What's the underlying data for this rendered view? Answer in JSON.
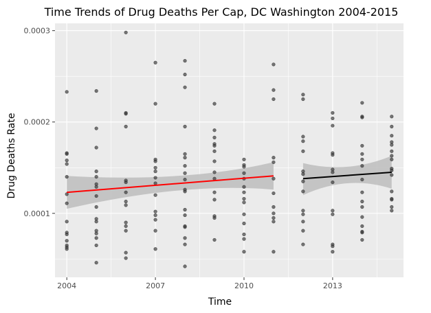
{
  "chart_data": {
    "type": "scatter",
    "title": "Time Trends of Drug Deaths Per Cap, DC Washington 2004-2015",
    "xlabel": "Time",
    "ylabel": "Drug Deaths Rate",
    "xlim": [
      2003.6,
      2015.4
    ],
    "ylim": [
      3e-05,
      0.000308
    ],
    "x_ticks": [
      2004,
      2007,
      2010,
      2013
    ],
    "x_tick_labels": [
      "2004",
      "2007",
      "2010",
      "2013"
    ],
    "y_ticks": [
      0.0001,
      0.0002,
      0.0003
    ],
    "y_tick_labels": [
      "0.0001",
      "0.0002",
      "0.0003"
    ],
    "grid": true,
    "legend": "none",
    "colors": {
      "panel": "#ebebeb",
      "grid_major": "#ffffff",
      "points": "#333333",
      "band": "#bdbdbd",
      "fit_before": "#ff0000",
      "fit_after": "#000000"
    },
    "points": [
      {
        "x": 2004,
        "y": 0.000233
      },
      {
        "x": 2004,
        "y": 0.000166
      },
      {
        "x": 2004,
        "y": 0.000165
      },
      {
        "x": 2004,
        "y": 0.000158
      },
      {
        "x": 2004,
        "y": 0.000154
      },
      {
        "x": 2004,
        "y": 0.00014
      },
      {
        "x": 2004,
        "y": 0.000121
      },
      {
        "x": 2004,
        "y": 0.000111
      },
      {
        "x": 2004,
        "y": 9.1e-05
      },
      {
        "x": 2004,
        "y": 7.9e-05
      },
      {
        "x": 2004,
        "y": 7.7e-05
      },
      {
        "x": 2004,
        "y": 7e-05
      },
      {
        "x": 2004,
        "y": 6.5e-05
      },
      {
        "x": 2004,
        "y": 6.3e-05
      },
      {
        "x": 2004,
        "y": 6.1e-05
      },
      {
        "x": 2005,
        "y": 0.000234
      },
      {
        "x": 2005,
        "y": 0.000193
      },
      {
        "x": 2005,
        "y": 0.000172
      },
      {
        "x": 2005,
        "y": 0.000146
      },
      {
        "x": 2005,
        "y": 0.00014
      },
      {
        "x": 2005,
        "y": 0.000132
      },
      {
        "x": 2005,
        "y": 0.000129
      },
      {
        "x": 2005,
        "y": 0.000119
      },
      {
        "x": 2005,
        "y": 0.000107
      },
      {
        "x": 2005,
        "y": 9.4e-05
      },
      {
        "x": 2005,
        "y": 9.1e-05
      },
      {
        "x": 2005,
        "y": 8.1e-05
      },
      {
        "x": 2005,
        "y": 7.8e-05
      },
      {
        "x": 2005,
        "y": 7.3e-05
      },
      {
        "x": 2005,
        "y": 6.5e-05
      },
      {
        "x": 2005,
        "y": 4.6e-05
      },
      {
        "x": 2006,
        "y": 0.000298
      },
      {
        "x": 2006,
        "y": 0.00021
      },
      {
        "x": 2006,
        "y": 0.000209
      },
      {
        "x": 2006,
        "y": 0.000195
      },
      {
        "x": 2006,
        "y": 0.000136
      },
      {
        "x": 2006,
        "y": 0.000134
      },
      {
        "x": 2006,
        "y": 0.000123
      },
      {
        "x": 2006,
        "y": 0.000113
      },
      {
        "x": 2006,
        "y": 0.000109
      },
      {
        "x": 2006,
        "y": 9e-05
      },
      {
        "x": 2006,
        "y": 8.6e-05
      },
      {
        "x": 2006,
        "y": 8.1e-05
      },
      {
        "x": 2006,
        "y": 5.7e-05
      },
      {
        "x": 2006,
        "y": 5.1e-05
      },
      {
        "x": 2007,
        "y": 0.000265
      },
      {
        "x": 2007,
        "y": 0.00022
      },
      {
        "x": 2007,
        "y": 0.000159
      },
      {
        "x": 2007,
        "y": 0.000157
      },
      {
        "x": 2007,
        "y": 0.00015
      },
      {
        "x": 2007,
        "y": 0.000146
      },
      {
        "x": 2007,
        "y": 0.000139
      },
      {
        "x": 2007,
        "y": 0.000133
      },
      {
        "x": 2007,
        "y": 0.00012
      },
      {
        "x": 2007,
        "y": 0.000102
      },
      {
        "x": 2007,
        "y": 9.8e-05
      },
      {
        "x": 2007,
        "y": 9.3e-05
      },
      {
        "x": 2007,
        "y": 8.1e-05
      },
      {
        "x": 2007,
        "y": 6.1e-05
      },
      {
        "x": 2008,
        "y": 0.000267
      },
      {
        "x": 2008,
        "y": 0.000252
      },
      {
        "x": 2008,
        "y": 0.000238
      },
      {
        "x": 2008,
        "y": 0.000195
      },
      {
        "x": 2008,
        "y": 0.000165
      },
      {
        "x": 2008,
        "y": 0.000161
      },
      {
        "x": 2008,
        "y": 0.000152
      },
      {
        "x": 2008,
        "y": 0.000144
      },
      {
        "x": 2008,
        "y": 0.000137
      },
      {
        "x": 2008,
        "y": 0.000126
      },
      {
        "x": 2008,
        "y": 0.000124
      },
      {
        "x": 2008,
        "y": 0.000104
      },
      {
        "x": 2008,
        "y": 9.8e-05
      },
      {
        "x": 2008,
        "y": 8.6e-05
      },
      {
        "x": 2008,
        "y": 8.5e-05
      },
      {
        "x": 2008,
        "y": 7.3e-05
      },
      {
        "x": 2008,
        "y": 6.6e-05
      },
      {
        "x": 2008,
        "y": 4.2e-05
      },
      {
        "x": 2009,
        "y": 0.00022
      },
      {
        "x": 2009,
        "y": 0.000191
      },
      {
        "x": 2009,
        "y": 0.000183
      },
      {
        "x": 2009,
        "y": 0.000176
      },
      {
        "x": 2009,
        "y": 0.000174
      },
      {
        "x": 2009,
        "y": 0.000168
      },
      {
        "x": 2009,
        "y": 0.000157
      },
      {
        "x": 2009,
        "y": 0.000145
      },
      {
        "x": 2009,
        "y": 0.000138
      },
      {
        "x": 2009,
        "y": 0.000123
      },
      {
        "x": 2009,
        "y": 0.000115
      },
      {
        "x": 2009,
        "y": 9.7e-05
      },
      {
        "x": 2009,
        "y": 9.5e-05
      },
      {
        "x": 2009,
        "y": 7.1e-05
      },
      {
        "x": 2010,
        "y": 0.000159
      },
      {
        "x": 2010,
        "y": 0.000153
      },
      {
        "x": 2010,
        "y": 0.000151
      },
      {
        "x": 2010,
        "y": 0.000144
      },
      {
        "x": 2010,
        "y": 0.000138
      },
      {
        "x": 2010,
        "y": 0.000129
      },
      {
        "x": 2010,
        "y": 0.000123
      },
      {
        "x": 2010,
        "y": 0.000116
      },
      {
        "x": 2010,
        "y": 0.000112
      },
      {
        "x": 2010,
        "y": 9.9e-05
      },
      {
        "x": 2010,
        "y": 8.9e-05
      },
      {
        "x": 2010,
        "y": 7.7e-05
      },
      {
        "x": 2010,
        "y": 7.2e-05
      },
      {
        "x": 2010,
        "y": 5.8e-05
      },
      {
        "x": 2011,
        "y": 0.000263
      },
      {
        "x": 2011,
        "y": 0.000235
      },
      {
        "x": 2011,
        "y": 0.000225
      },
      {
        "x": 2011,
        "y": 0.000161
      },
      {
        "x": 2011,
        "y": 0.000156
      },
      {
        "x": 2011,
        "y": 0.000138
      },
      {
        "x": 2011,
        "y": 0.000122
      },
      {
        "x": 2011,
        "y": 0.000107
      },
      {
        "x": 2011,
        "y": 0.0001
      },
      {
        "x": 2011,
        "y": 9.5e-05
      },
      {
        "x": 2011,
        "y": 9.1e-05
      },
      {
        "x": 2011,
        "y": 5.8e-05
      },
      {
        "x": 2012,
        "y": 0.00023
      },
      {
        "x": 2012,
        "y": 0.000225
      },
      {
        "x": 2012,
        "y": 0.000184
      },
      {
        "x": 2012,
        "y": 0.000179
      },
      {
        "x": 2012,
        "y": 0.000168
      },
      {
        "x": 2012,
        "y": 0.000146
      },
      {
        "x": 2012,
        "y": 0.000143
      },
      {
        "x": 2012,
        "y": 0.000135
      },
      {
        "x": 2012,
        "y": 0.000124
      },
      {
        "x": 2012,
        "y": 0.000103
      },
      {
        "x": 2012,
        "y": 9.9e-05
      },
      {
        "x": 2012,
        "y": 9.1e-05
      },
      {
        "x": 2012,
        "y": 8.1e-05
      },
      {
        "x": 2012,
        "y": 6.6e-05
      },
      {
        "x": 2013,
        "y": 0.00021
      },
      {
        "x": 2013,
        "y": 0.000204
      },
      {
        "x": 2013,
        "y": 0.000196
      },
      {
        "x": 2013,
        "y": 0.000166
      },
      {
        "x": 2013,
        "y": 0.000164
      },
      {
        "x": 2013,
        "y": 0.000148
      },
      {
        "x": 2013,
        "y": 0.000145
      },
      {
        "x": 2013,
        "y": 0.000134
      },
      {
        "x": 2013,
        "y": 0.000103
      },
      {
        "x": 2013,
        "y": 9.9e-05
      },
      {
        "x": 2013,
        "y": 6.6e-05
      },
      {
        "x": 2013,
        "y": 6.4e-05
      },
      {
        "x": 2013,
        "y": 5.8e-05
      },
      {
        "x": 2014,
        "y": 0.000221
      },
      {
        "x": 2014,
        "y": 0.000206
      },
      {
        "x": 2014,
        "y": 0.000205
      },
      {
        "x": 2014,
        "y": 0.000174
      },
      {
        "x": 2014,
        "y": 0.000165
      },
      {
        "x": 2014,
        "y": 0.000159
      },
      {
        "x": 2014,
        "y": 0.000152
      },
      {
        "x": 2014,
        "y": 0.000137
      },
      {
        "x": 2014,
        "y": 0.000123
      },
      {
        "x": 2014,
        "y": 0.000113
      },
      {
        "x": 2014,
        "y": 0.000107
      },
      {
        "x": 2014,
        "y": 9.6e-05
      },
      {
        "x": 2014,
        "y": 8.6e-05
      },
      {
        "x": 2014,
        "y": 8e-05
      },
      {
        "x": 2014,
        "y": 7.9e-05
      },
      {
        "x": 2014,
        "y": 7.1e-05
      },
      {
        "x": 2015,
        "y": 0.000206
      },
      {
        "x": 2015,
        "y": 0.000195
      },
      {
        "x": 2015,
        "y": 0.000185
      },
      {
        "x": 2015,
        "y": 0.000178
      },
      {
        "x": 2015,
        "y": 0.000175
      },
      {
        "x": 2015,
        "y": 0.000168
      },
      {
        "x": 2015,
        "y": 0.000163
      },
      {
        "x": 2015,
        "y": 0.000159
      },
      {
        "x": 2015,
        "y": 0.000149
      },
      {
        "x": 2015,
        "y": 0.000147
      },
      {
        "x": 2015,
        "y": 0.000142
      },
      {
        "x": 2015,
        "y": 0.000124
      },
      {
        "x": 2015,
        "y": 0.000116
      },
      {
        "x": 2015,
        "y": 0.000115
      },
      {
        "x": 2015,
        "y": 0.000107
      },
      {
        "x": 2015,
        "y": 0.000103
      }
    ],
    "fits": [
      {
        "color": "#ff0000",
        "x": [
          2004,
          2011
        ],
        "y": [
          0.000123,
          0.000141
        ],
        "band_upper": [
          0.000141,
          0.000156
        ],
        "band_lower": [
          0.000105,
          0.000126
        ],
        "band_mid": {
          "x": 2008,
          "upper": 0.000141,
          "lower": 0.000125
        }
      },
      {
        "color": "#000000",
        "x": [
          2012,
          2015
        ],
        "y": [
          0.000138,
          0.000145
        ],
        "band_upper": [
          0.000155,
          0.000163
        ],
        "band_lower": [
          0.00012,
          0.000127
        ],
        "band_mid": {
          "x": 2013.5,
          "upper": 0.000151,
          "lower": 0.000133
        }
      }
    ]
  }
}
